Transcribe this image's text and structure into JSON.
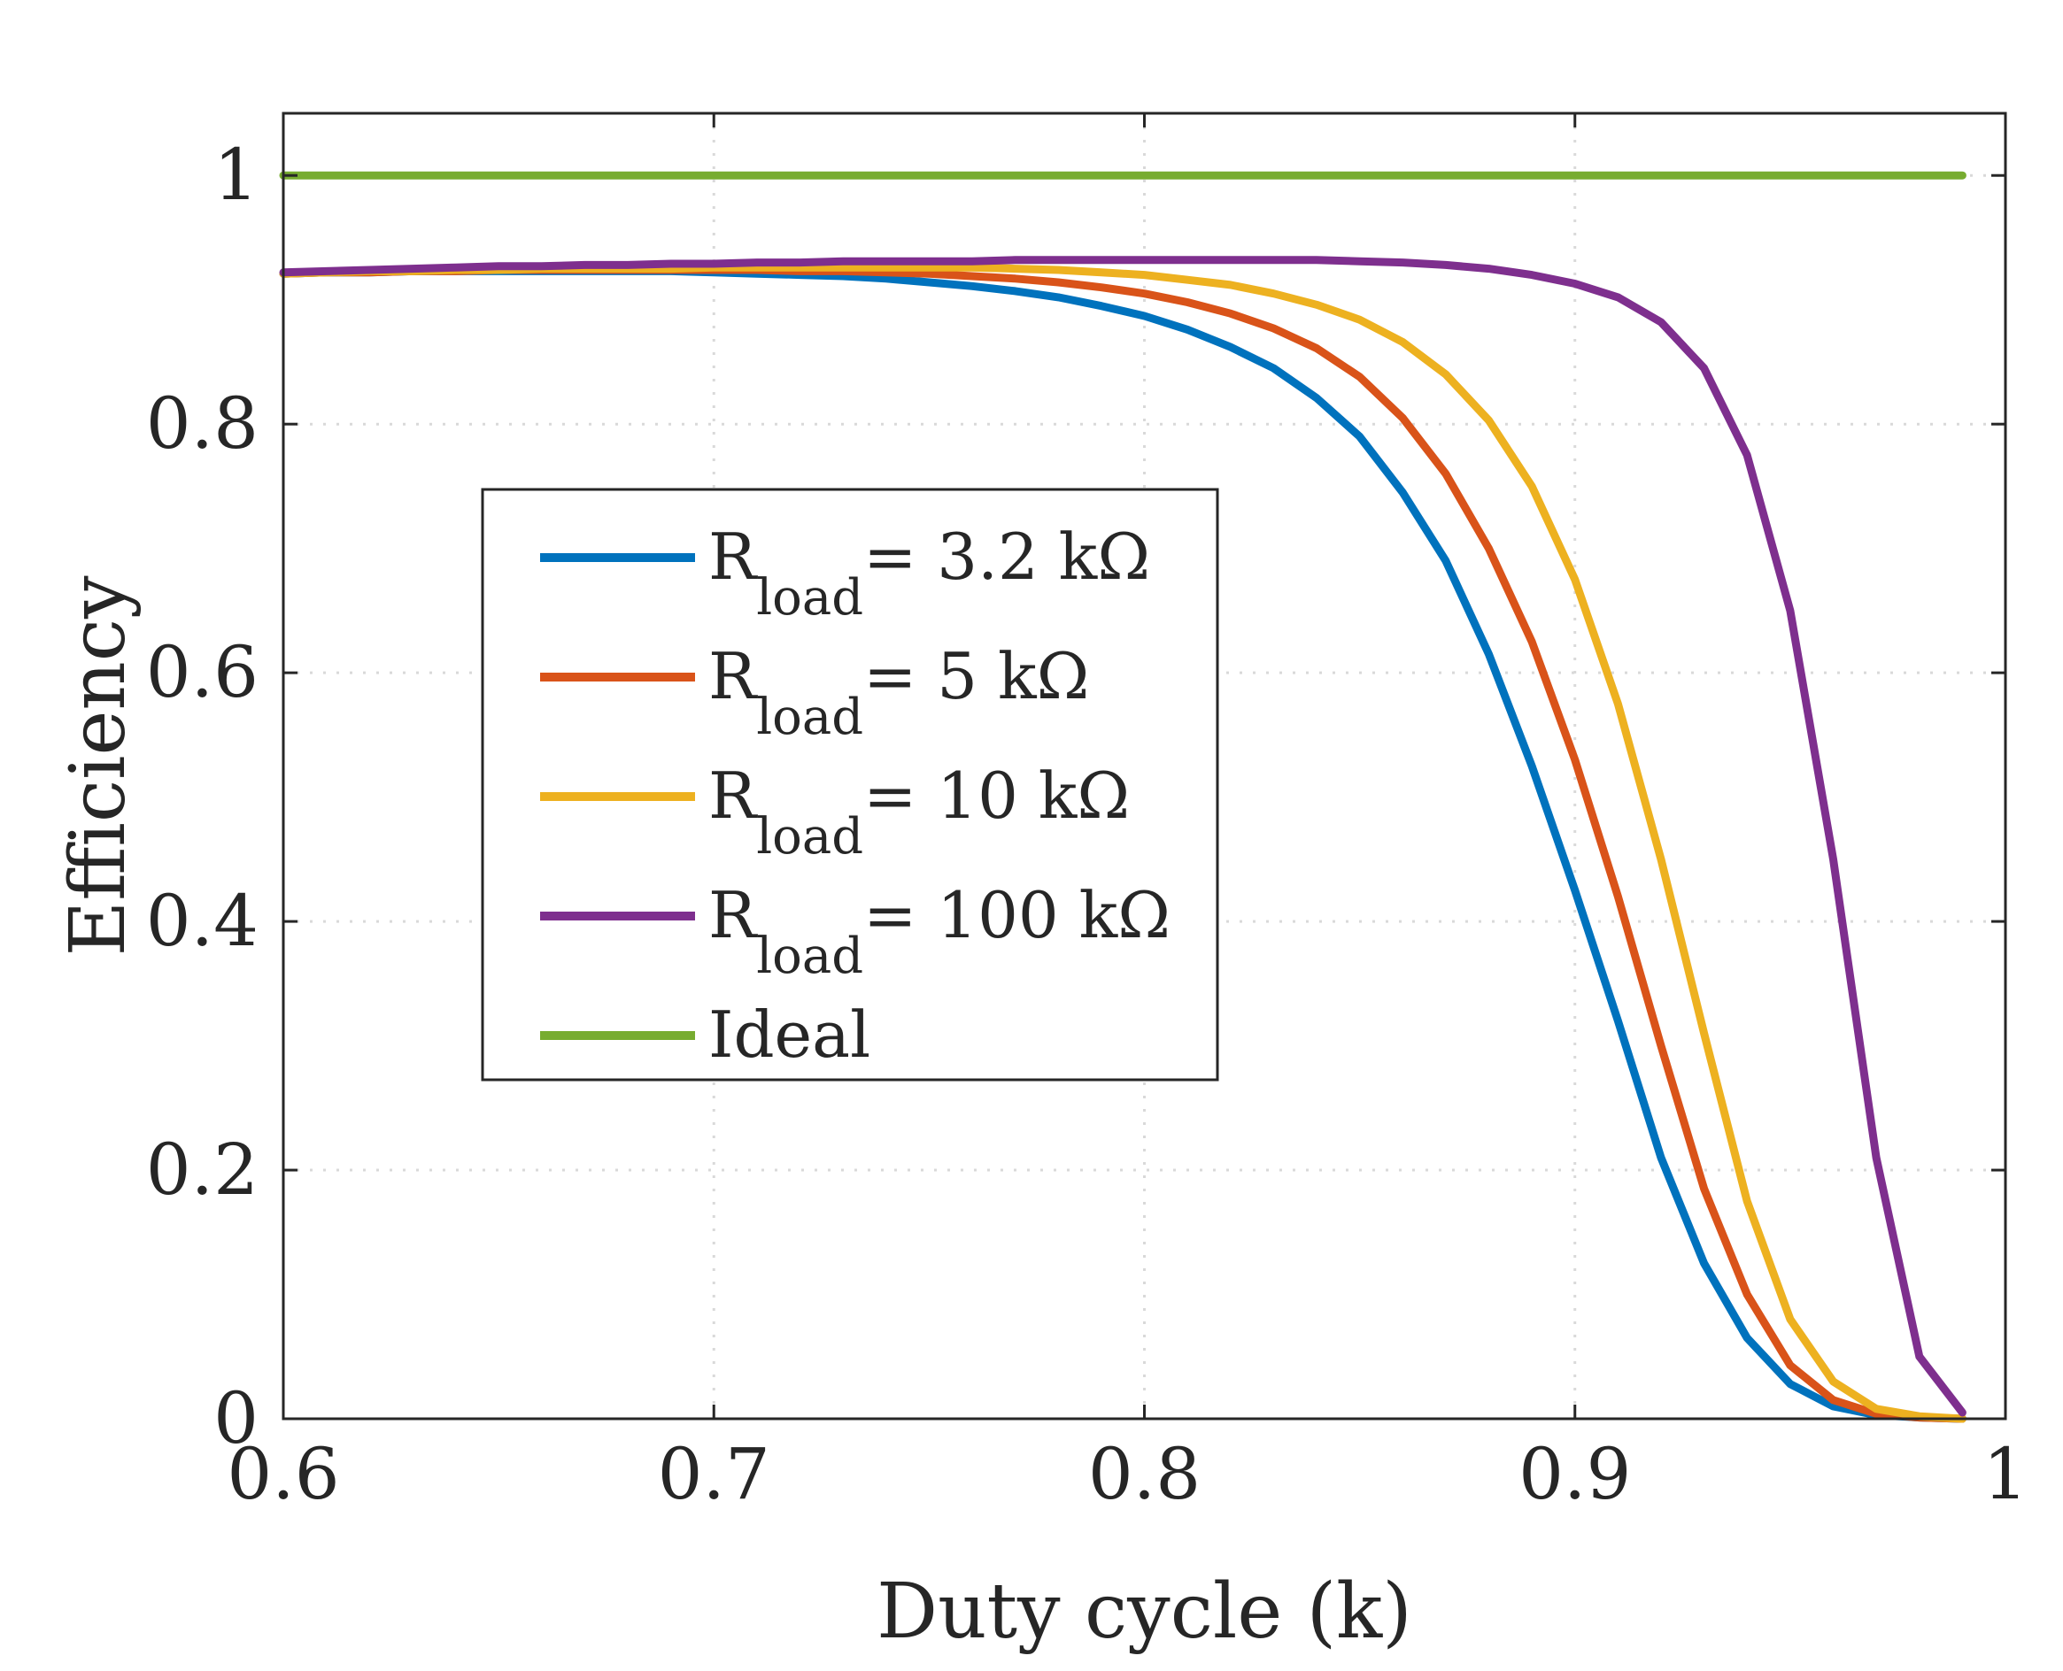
{
  "chart_data": {
    "type": "line",
    "xlabel": "Duty cycle (k)",
    "ylabel": "Efficiency",
    "xlim": [
      0.6,
      1.0
    ],
    "ylim": [
      0,
      1.05
    ],
    "xticks": [
      0.6,
      0.7,
      0.8,
      0.9,
      1.0
    ],
    "xtick_labels": [
      "0.6",
      "0.7",
      "0.8",
      "0.9",
      "1"
    ],
    "yticks": [
      0,
      0.2,
      0.4,
      0.6,
      0.8,
      1.0
    ],
    "ytick_labels": [
      "0",
      "0.2",
      "0.4",
      "0.6",
      "0.8",
      "1"
    ],
    "grid": true,
    "legend_placement": "center-left",
    "x": [
      0.6,
      0.61,
      0.62,
      0.63,
      0.64,
      0.65,
      0.66,
      0.67,
      0.68,
      0.69,
      0.7,
      0.71,
      0.72,
      0.73,
      0.74,
      0.75,
      0.76,
      0.77,
      0.78,
      0.79,
      0.8,
      0.81,
      0.82,
      0.83,
      0.84,
      0.85,
      0.86,
      0.87,
      0.88,
      0.89,
      0.9,
      0.91,
      0.92,
      0.93,
      0.94,
      0.95,
      0.96,
      0.97,
      0.98,
      0.99
    ],
    "series": [
      {
        "name": "Rload= 3.2 kΩ",
        "legend_main": "R",
        "legend_sub": "load",
        "legend_rest": "= 3.2 kΩ",
        "color": "#0072BD",
        "values": [
          0.921,
          0.922,
          0.922,
          0.923,
          0.923,
          0.923,
          0.923,
          0.923,
          0.923,
          0.923,
          0.922,
          0.921,
          0.92,
          0.919,
          0.917,
          0.914,
          0.911,
          0.907,
          0.902,
          0.895,
          0.887,
          0.876,
          0.862,
          0.845,
          0.821,
          0.79,
          0.745,
          0.69,
          0.615,
          0.525,
          0.425,
          0.32,
          0.21,
          0.125,
          0.065,
          0.028,
          0.01,
          0.003,
          0.001,
          0.0
        ]
      },
      {
        "name": "Rload= 5 kΩ",
        "legend_main": "R",
        "legend_sub": "load",
        "legend_rest": "= 5 kΩ",
        "color": "#D95319",
        "values": [
          0.921,
          0.922,
          0.922,
          0.923,
          0.923,
          0.924,
          0.924,
          0.924,
          0.924,
          0.924,
          0.924,
          0.924,
          0.923,
          0.923,
          0.922,
          0.921,
          0.919,
          0.917,
          0.914,
          0.91,
          0.905,
          0.898,
          0.889,
          0.877,
          0.861,
          0.838,
          0.805,
          0.76,
          0.7,
          0.625,
          0.53,
          0.42,
          0.3,
          0.185,
          0.1,
          0.043,
          0.015,
          0.004,
          0.001,
          0.0
        ]
      },
      {
        "name": "Rload= 10 kΩ",
        "legend_main": "R",
        "legend_sub": "load",
        "legend_rest": "= 10 kΩ",
        "color": "#EDB120",
        "values": [
          0.921,
          0.922,
          0.923,
          0.923,
          0.924,
          0.924,
          0.925,
          0.925,
          0.925,
          0.925,
          0.926,
          0.926,
          0.926,
          0.926,
          0.926,
          0.926,
          0.926,
          0.925,
          0.924,
          0.922,
          0.92,
          0.916,
          0.912,
          0.905,
          0.896,
          0.884,
          0.866,
          0.84,
          0.803,
          0.75,
          0.675,
          0.575,
          0.45,
          0.31,
          0.175,
          0.08,
          0.03,
          0.008,
          0.002,
          0.0
        ]
      },
      {
        "name": "Rload= 100 kΩ",
        "legend_main": "R",
        "legend_sub": "load",
        "legend_rest": "= 100 kΩ",
        "color": "#7E2F8E",
        "values": [
          0.922,
          0.923,
          0.924,
          0.925,
          0.926,
          0.927,
          0.927,
          0.928,
          0.928,
          0.929,
          0.929,
          0.93,
          0.93,
          0.931,
          0.931,
          0.931,
          0.931,
          0.932,
          0.932,
          0.932,
          0.932,
          0.932,
          0.932,
          0.932,
          0.932,
          0.931,
          0.93,
          0.928,
          0.925,
          0.92,
          0.913,
          0.902,
          0.882,
          0.845,
          0.775,
          0.65,
          0.45,
          0.21,
          0.05,
          0.005
        ]
      },
      {
        "name": "Ideal",
        "legend_main": "Ideal",
        "legend_sub": "",
        "legend_rest": "",
        "color": "#77AC30",
        "values": [
          1.0,
          1.0,
          1.0,
          1.0,
          1.0,
          1.0,
          1.0,
          1.0,
          1.0,
          1.0,
          1.0,
          1.0,
          1.0,
          1.0,
          1.0,
          1.0,
          1.0,
          1.0,
          1.0,
          1.0,
          1.0,
          1.0,
          1.0,
          1.0,
          1.0,
          1.0,
          1.0,
          1.0,
          1.0,
          1.0,
          1.0,
          1.0,
          1.0,
          1.0,
          1.0,
          1.0,
          1.0,
          1.0,
          1.0,
          1.0
        ]
      }
    ]
  }
}
